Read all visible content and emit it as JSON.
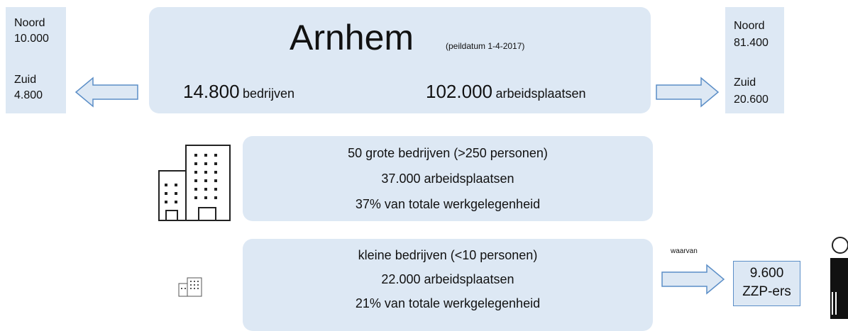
{
  "left": {
    "north_label": "Noord",
    "north_value": "10.000",
    "south_label": "Zuid",
    "south_value": "4.800"
  },
  "main": {
    "title": "Arnhem",
    "date_note": "(peildatum 1-4-2017)",
    "companies_value": "14.800",
    "companies_label": "bedrijven",
    "jobs_value": "102.000",
    "jobs_label": "arbeidsplaatsen"
  },
  "right": {
    "north_label": "Noord",
    "north_value": "81.400",
    "south_label": "Zuid",
    "south_value": "20.600"
  },
  "large": {
    "lines": [
      "50 grote bedrijven (>250 personen)",
      "37.000 arbeidsplaatsen",
      "37% van totale werkgelegenheid"
    ]
  },
  "small": {
    "lines": [
      "kleine bedrijven (<10 personen)",
      "22.000 arbeidsplaatsen",
      "21% van totale werkgelegenheid"
    ]
  },
  "zzp": {
    "arrow_label": "waarvan",
    "value": "9.600",
    "label": "ZZP-ers"
  }
}
